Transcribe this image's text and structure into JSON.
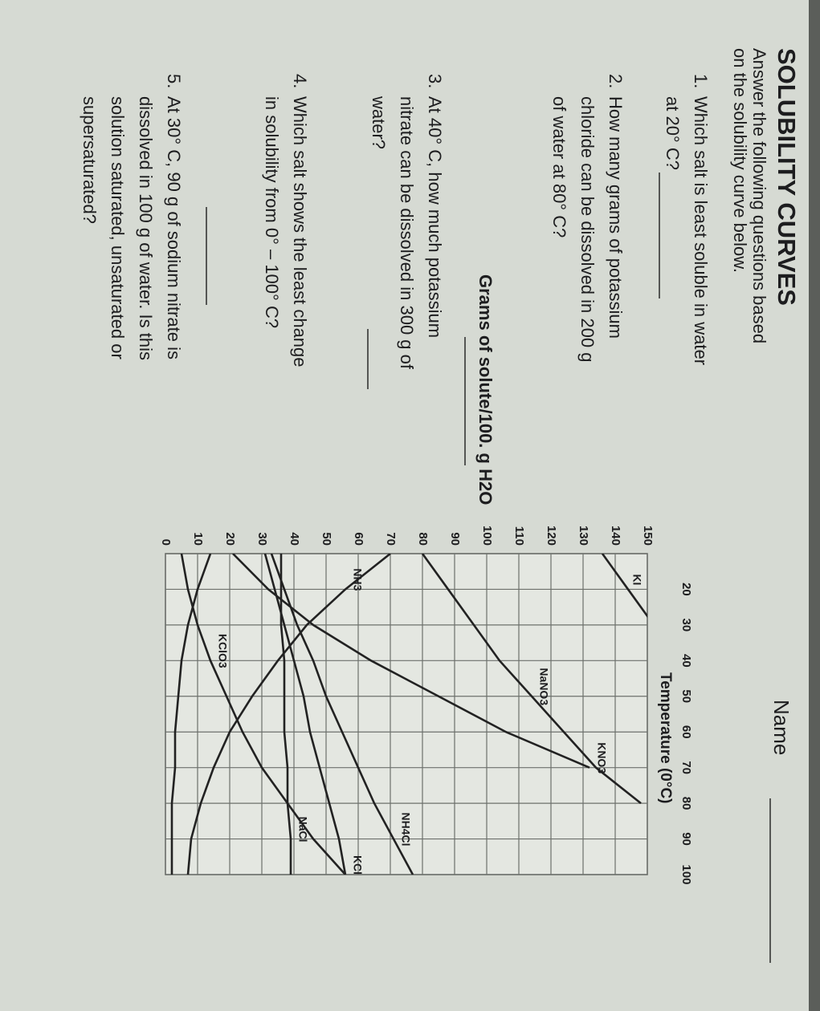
{
  "header": {
    "title": "SOLUBILITY CURVES",
    "name_label": "Name",
    "instructions": [
      "Answer the following questions based",
      "on the solubility curve below."
    ]
  },
  "questions": [
    {
      "number": "1.",
      "lines": [
        "Which salt is least soluble in water",
        "at 20° C?"
      ]
    },
    {
      "number": "2.",
      "lines": [
        "How many grams of potassium",
        "chloride can be dissolved in 200 g",
        "of water at 80° C?"
      ]
    },
    {
      "number": "3.",
      "lines": [
        "At 40° C, how much potassium",
        "nitrate can be dissolved in 300 g of",
        "water?"
      ]
    },
    {
      "number": "4.",
      "lines": [
        "Which salt shows the least change",
        "in solubility from 0° – 100° C?"
      ]
    },
    {
      "number": "5.",
      "lines": [
        "At 30° C, 90 g of sodium nitrate is",
        "dissolved in 100 g of water.  Is this",
        "solution saturated, unsaturated or",
        "supersaturated?"
      ]
    }
  ],
  "chart_data": {
    "type": "line",
    "y_label": "Grams of solute/100. g H2O",
    "x_label": "Temperature (0°C)",
    "x": [
      10,
      20,
      30,
      40,
      50,
      60,
      70,
      80,
      90,
      100
    ],
    "xlim": [
      10,
      100
    ],
    "xticks": [
      20,
      30,
      40,
      50,
      60,
      70,
      80,
      90,
      100
    ],
    "ylim": [
      0,
      150
    ],
    "yticks": [
      0,
      10,
      20,
      30,
      40,
      50,
      60,
      70,
      80,
      90,
      100,
      110,
      120,
      130,
      140,
      150
    ],
    "grid": true,
    "series": [
      {
        "name": "KI",
        "color": "#222222",
        "values": [
          136,
          144,
          152,
          null,
          null,
          null,
          null,
          null,
          null,
          null
        ]
      },
      {
        "name": "NaNO3",
        "color": "#222222",
        "values": [
          80,
          88,
          96,
          104,
          114,
          124,
          134,
          148,
          null,
          null
        ]
      },
      {
        "name": "KNO3",
        "color": "#222222",
        "values": [
          21,
          32,
          46,
          64,
          85,
          106,
          132,
          null,
          null,
          null
        ]
      },
      {
        "name": "NH3",
        "color": "#222222",
        "values": [
          70,
          56,
          44,
          35,
          27,
          20,
          15,
          11,
          8,
          7
        ]
      },
      {
        "name": "NH4Cl",
        "color": "#222222",
        "values": [
          33,
          37,
          41,
          46,
          50,
          55,
          60,
          65,
          71,
          77
        ]
      },
      {
        "name": "KCl",
        "color": "#222222",
        "values": [
          31,
          34,
          37,
          40,
          43,
          45,
          48,
          51,
          54,
          56
        ]
      },
      {
        "name": "NaCl",
        "color": "#222222",
        "values": [
          36,
          36,
          36,
          37,
          37,
          37,
          38,
          38,
          39,
          39
        ]
      },
      {
        "name": "KClO3",
        "color": "#222222",
        "values": [
          5,
          7,
          10,
          14,
          19,
          24,
          30,
          38,
          46,
          56
        ]
      },
      {
        "color": "#222222",
        "values": [
          14,
          10,
          7,
          5,
          4,
          3,
          3,
          2,
          2,
          2
        ]
      }
    ]
  }
}
